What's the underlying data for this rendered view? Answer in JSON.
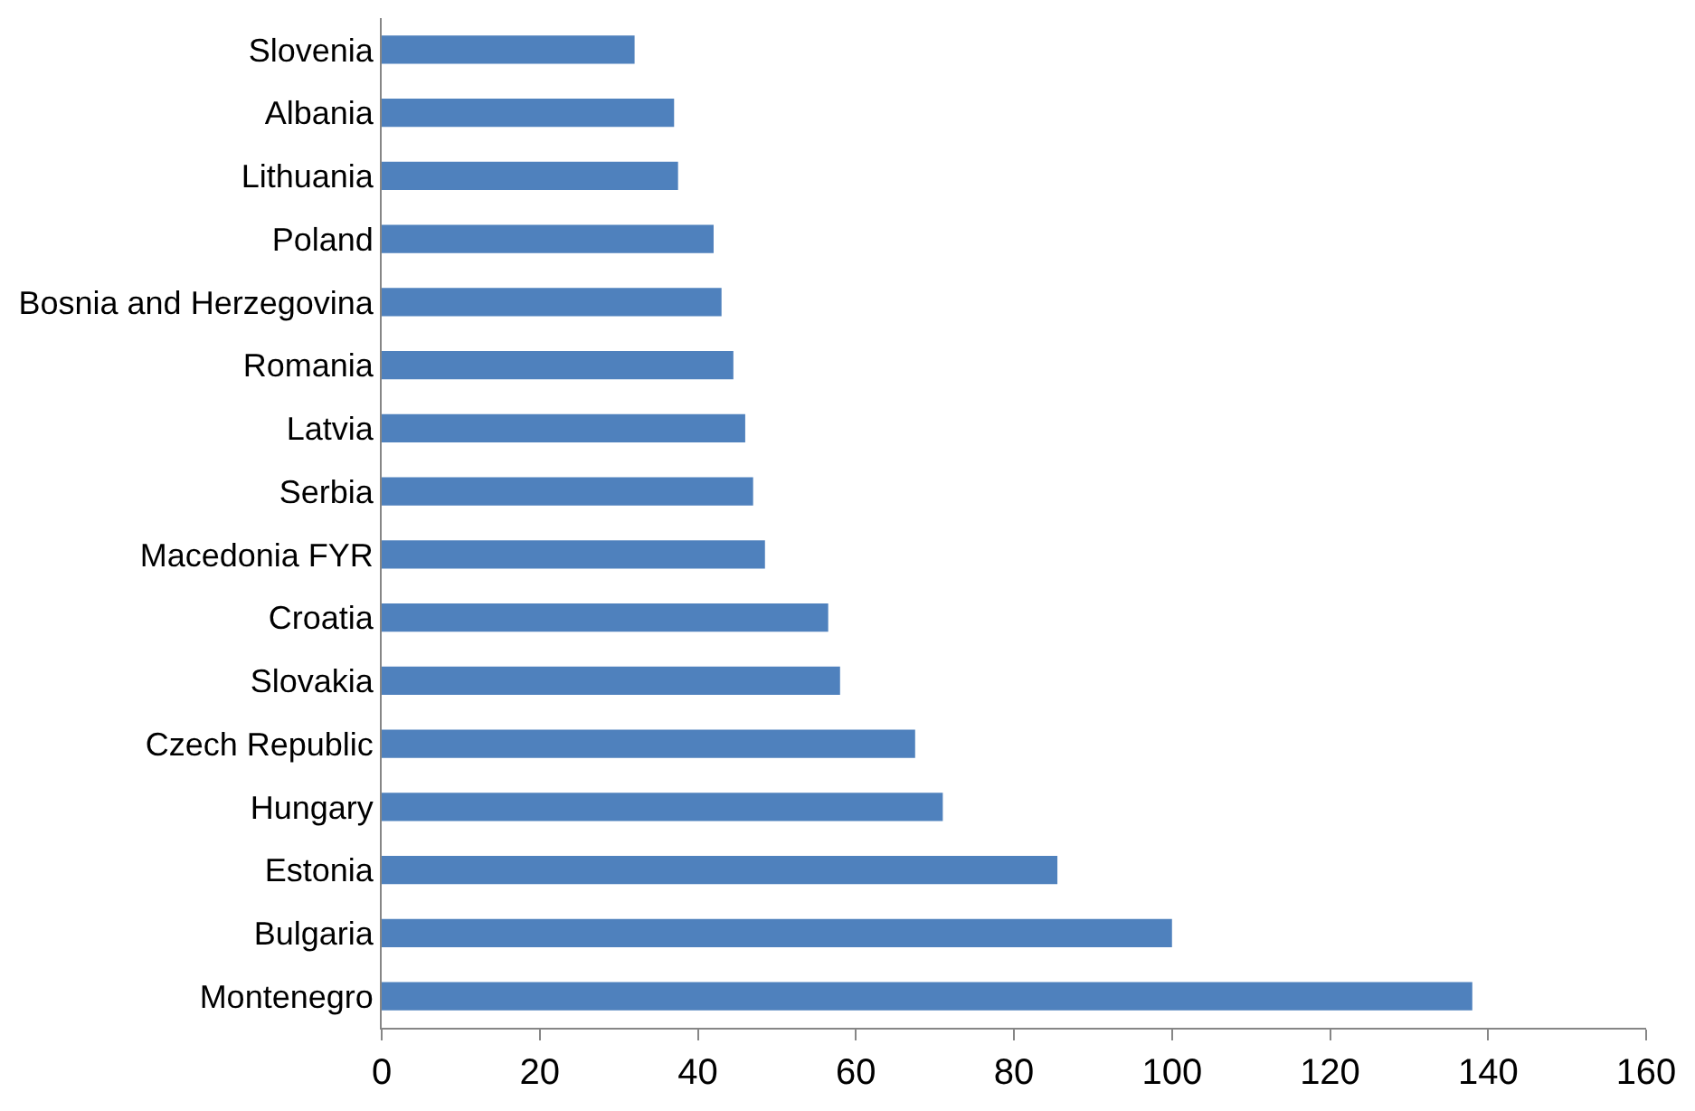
{
  "chart_data": {
    "type": "bar",
    "orientation": "horizontal",
    "categories": [
      "Slovenia",
      "Albania",
      "Lithuania",
      "Poland",
      "Bosnia and Herzegovina",
      "Romania",
      "Latvia",
      "Serbia",
      "Macedonia FYR",
      "Croatia",
      "Slovakia",
      "Czech Republic",
      "Hungary",
      "Estonia",
      "Bulgaria",
      "Montenegro"
    ],
    "values": [
      32,
      37,
      37.5,
      42,
      43,
      44.5,
      46,
      47,
      48.5,
      56.5,
      58,
      67.5,
      71,
      85.5,
      100,
      138
    ],
    "color": "#4f81bd",
    "xlim": [
      0,
      160
    ],
    "xticks": [
      0,
      20,
      40,
      60,
      80,
      100,
      120,
      140,
      160
    ]
  }
}
